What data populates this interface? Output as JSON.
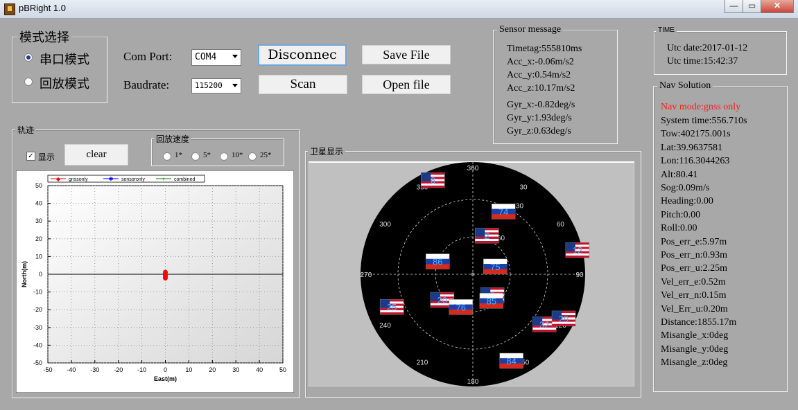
{
  "window": {
    "title": "pBRight 1.0"
  },
  "mode": {
    "title": "模式选择",
    "serial": "串口模式",
    "playback": "回放模式"
  },
  "conn": {
    "com_label": "Com Port:",
    "com_value": "COM4",
    "baud_label": "Baudrate:",
    "baud_value": "115200",
    "disconnect": "Disconnec",
    "save": "Save File",
    "scan": "Scan",
    "open": "Open file"
  },
  "sensor": {
    "title": "Sensor message",
    "lines": [
      "Timetag:555810ms",
      "Acc_x:-0.06m/s2",
      "Acc_y:0.54m/s2",
      "Acc_z:10.17m/s2",
      "Gyr_x:-0.82deg/s",
      "Gyr_y:1.93deg/s",
      "Gyr_z:0.63deg/s"
    ]
  },
  "time": {
    "title": "TIME",
    "date": "Utc date:2017-01-12",
    "time": "Utc time:15:42:37"
  },
  "nav": {
    "title": "Nav Solution",
    "mode": "Nav mode:gnss only",
    "mode_color": "#ff1a1a",
    "lines": [
      "System time:556.710s",
      "Tow:402175.001s",
      "Lat:39.9637581",
      "Lon:116.3044263",
      "Alt:80.41",
      "Sog:0.09m/s",
      "Heading:0.00",
      "Pitch:0.00",
      "Roll:0.00",
      "Pos_err_e:5.97m",
      "Pos_err_n:0.93m",
      "Pos_err_u:2.25m",
      "Vel_err_e:0.52m",
      "Vel_err_n:0.15m",
      "Vel_Err_u:0.20m",
      "Distance:1855.17m",
      "Misangle_x:0deg",
      "Misangle_y:0deg",
      "Misangle_z:0deg"
    ]
  },
  "track": {
    "title": "轨迹",
    "show_label": "显示",
    "clear": "clear",
    "speed_title": "回放速度",
    "speeds": [
      "1*",
      "5*",
      "10*",
      "25*"
    ]
  },
  "chart_data": {
    "type": "line",
    "xlabel": "East(m)",
    "ylabel": "North(m)",
    "xlim": [
      -50,
      50
    ],
    "ylim": [
      -50,
      50
    ],
    "xticks": [
      -50,
      -40,
      -30,
      -20,
      -10,
      0,
      10,
      20,
      30,
      40,
      50
    ],
    "yticks": [
      50,
      40,
      30,
      20,
      10,
      0,
      -10,
      -20,
      -30,
      -40,
      -50
    ],
    "grid": true,
    "legend_placement": "top",
    "series": [
      {
        "name": "gnssonly",
        "color": "#ff0000",
        "points": [
          [
            0,
            0
          ],
          [
            0,
            -1
          ],
          [
            0,
            -2
          ],
          [
            0,
            1
          ]
        ]
      },
      {
        "name": "sensoronly",
        "color": "#0000ff",
        "points": []
      },
      {
        "name": "combined",
        "color": "#008000",
        "points": []
      }
    ]
  },
  "sky": {
    "title": "卫星显示",
    "azimuth_labels": [
      "360",
      "30",
      "60",
      "90",
      "120",
      "150",
      "180",
      "210",
      "240",
      "270",
      "300",
      "330"
    ],
    "elev_labels": [
      "30",
      "60"
    ],
    "sats": [
      {
        "prn": "6",
        "type": "us",
        "az": 337,
        "el": 8
      },
      {
        "prn": "74",
        "type": "ru",
        "az": 26,
        "el": 34
      },
      {
        "prn": "2",
        "type": "us",
        "az": 20,
        "el": 57
      },
      {
        "prn": "12",
        "type": "us",
        "az": 77,
        "el": 4
      },
      {
        "prn": "86",
        "type": "ru",
        "az": 290,
        "el": 60
      },
      {
        "prn": "75",
        "type": "ru",
        "az": 71,
        "el": 71
      },
      {
        "prn": "20",
        "type": "us",
        "az": 230,
        "el": 58
      },
      {
        "prn": "25",
        "type": "us",
        "az": 248,
        "el": 20
      },
      {
        "prn": "76",
        "type": "ru",
        "az": 200,
        "el": 62
      },
      {
        "prn": "5",
        "type": "us",
        "az": 137,
        "el": 67
      },
      {
        "prn": "85",
        "type": "ru",
        "az": 145,
        "el": 64
      },
      {
        "prn": "32",
        "type": "us",
        "az": 125,
        "el": 20
      },
      {
        "prn": "29",
        "type": "us",
        "az": 116,
        "el": 9
      },
      {
        "prn": "84",
        "type": "ru",
        "az": 156,
        "el": 14
      }
    ]
  }
}
